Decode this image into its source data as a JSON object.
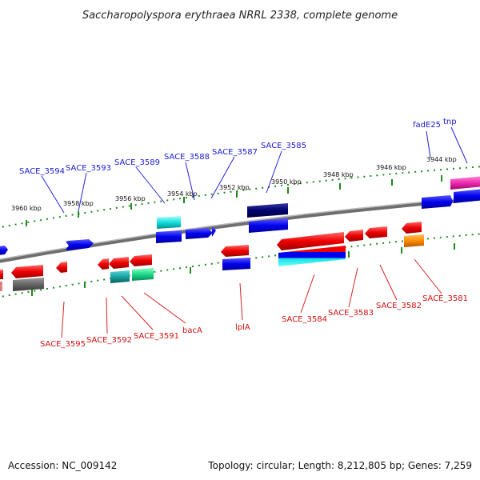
{
  "title": "Saccharopolyspora erythraea NRRL 2338, complete genome",
  "footer": {
    "accession": "Accession: NC_009142",
    "summary": "Topology: circular; Length: 8,212,805 bp; Genes: 7,259"
  },
  "scale_labels": [
    "3960 kbp",
    "3958 kbp",
    "3956 kbp",
    "3954 kbp",
    "3952 kbp",
    "3950 kbp",
    "3948 kbp",
    "3946 kbp",
    "3944 kbp"
  ],
  "top_labels": [
    "SACE_3594",
    "SACE_3593",
    "SACE_3589",
    "SACE_3588",
    "SACE_3587",
    "SACE_3585",
    "fadE25",
    "tnp"
  ],
  "bottom_labels": [
    "SACE_3595",
    "SACE_3592",
    "SACE_3591",
    "bacA",
    "lplA",
    "SACE_3584",
    "SACE_3583",
    "SACE_3582",
    "SACE_3581"
  ],
  "colors": {
    "backbone": "#7a7a7a",
    "forward_gene": "#0a0ae6",
    "reverse_gene": "#e60a0a",
    "top_label": "#1a1ad6",
    "bottom_label": "#d01010",
    "tick": "#1f8a1f"
  }
}
